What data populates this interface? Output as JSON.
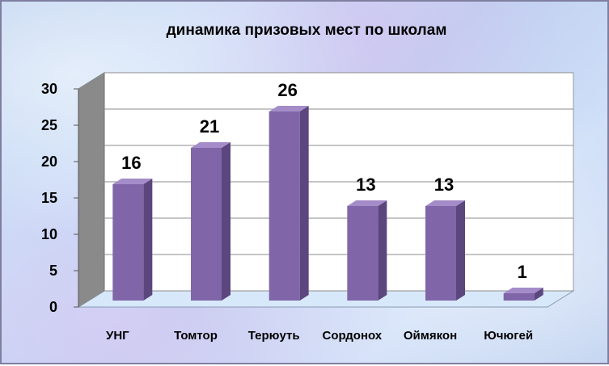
{
  "chart_data": {
    "type": "bar",
    "title": "динамика призовых мест по школам",
    "categories": [
      "УНГ",
      "Томтор",
      "Терюуть",
      "Сордонох",
      "Оймякон",
      "Ючюгей"
    ],
    "values": [
      16,
      21,
      26,
      13,
      13,
      1
    ],
    "data_labels": [
      "16",
      "21",
      "26",
      "13",
      "13",
      "1"
    ],
    "ylim": [
      0,
      30
    ],
    "yticks": [
      "0",
      "5",
      "10",
      "15",
      "20",
      "25",
      "30"
    ],
    "grid": true,
    "legend": "none",
    "style": "3d-column",
    "colors": {
      "bar_front": "#8066a8",
      "bar_side": "#5c467e",
      "bar_top": "#a48cc8",
      "wall": "#ffffff",
      "wall_left": "#8a8a8a",
      "floor": "#d8e8fb"
    }
  }
}
